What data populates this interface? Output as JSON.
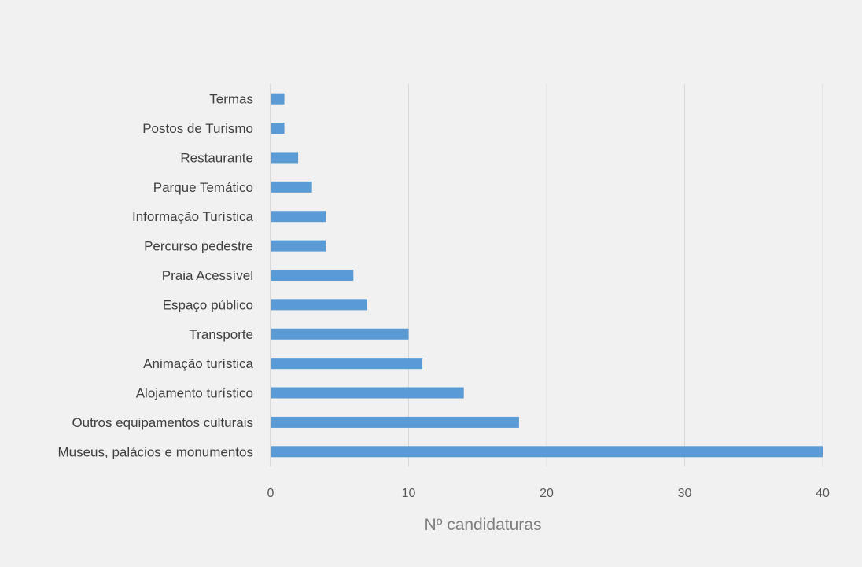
{
  "chart_data": {
    "type": "bar",
    "orientation": "horizontal",
    "categories": [
      "Termas",
      "Postos de Turismo",
      "Restaurante",
      "Parque Temático",
      "Informação Turística",
      "Percurso pedestre",
      "Praia Acessível",
      "Espaço público",
      "Transporte",
      "Animação turística",
      "Alojamento turístico",
      "Outros equipamentos culturais",
      "Museus, palácios e monumentos"
    ],
    "values": [
      1,
      1,
      2,
      3,
      4,
      4,
      6,
      7,
      10,
      11,
      14,
      18,
      40
    ],
    "xlabel": "Nº candidaturas",
    "ylabel": "",
    "xlim": [
      0,
      40
    ],
    "xticks": [
      "0",
      "10",
      "20",
      "30",
      "40"
    ],
    "grid": "vertical",
    "bar_color": "#5b9bd5",
    "gridline_color": "#d9d9d9",
    "axis_color": "#bfbfbf"
  }
}
